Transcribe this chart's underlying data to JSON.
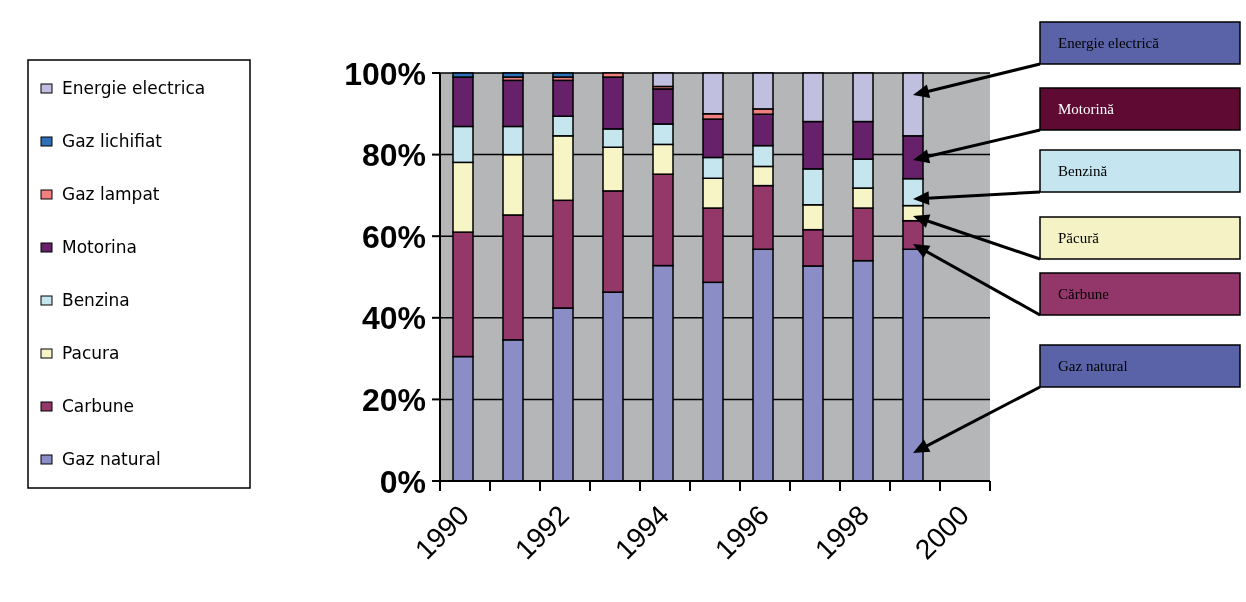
{
  "chart_data": {
    "type": "bar",
    "stacked": true,
    "categories": [
      "1990",
      null,
      "1992",
      null,
      "1994",
      null,
      "1996",
      null,
      "1998",
      null,
      "2000"
    ],
    "series": [
      {
        "name": "Gaz natural",
        "color": "#8b8dc7",
        "values": [
          30.5,
          34.6,
          42.4,
          46.3,
          52.8,
          48.7,
          56.8,
          52.7,
          54.0,
          56.8,
          null
        ]
      },
      {
        "name": "Carbune",
        "color": "#943769",
        "values": [
          30.5,
          30.6,
          26.4,
          24.8,
          22.4,
          18.2,
          15.6,
          8.9,
          12.9,
          7.0,
          null
        ]
      },
      {
        "name": "Pacura",
        "color": "#f7f5c6",
        "values": [
          17.1,
          14.8,
          15.8,
          10.7,
          7.3,
          7.3,
          4.7,
          6.1,
          4.9,
          3.7,
          null
        ]
      },
      {
        "name": "Benzina",
        "color": "#c5e6ef",
        "values": [
          8.8,
          6.9,
          4.8,
          4.5,
          5.0,
          5.1,
          5.1,
          8.8,
          7.1,
          6.6,
          null
        ]
      },
      {
        "name": "Motorina",
        "color": "#66216a",
        "values": [
          12.1,
          11.3,
          8.8,
          12.7,
          8.6,
          9.4,
          7.7,
          11.6,
          9.2,
          10.5,
          null
        ]
      },
      {
        "name": "Gaz lampat",
        "color": "#f08080",
        "values": [
          0,
          0.8,
          0.8,
          1.0,
          0.6,
          1.3,
          1.3,
          0,
          0,
          0,
          null
        ]
      },
      {
        "name": "Gaz lichifiat",
        "color": "#2f6fb8",
        "values": [
          1.0,
          1.0,
          1.0,
          0,
          0,
          0,
          0,
          0,
          0,
          0,
          null
        ]
      },
      {
        "name": "Energie electrica",
        "color": "#c0bfe0",
        "values": [
          0,
          0,
          0,
          0,
          3.3,
          10.0,
          8.8,
          11.9,
          11.9,
          15.4,
          null
        ]
      }
    ],
    "ylim": [
      0,
      100
    ],
    "yticks": [
      {
        "value": 0,
        "label": "0%"
      },
      {
        "value": 20,
        "label": "20%"
      },
      {
        "value": 40,
        "label": "40%"
      },
      {
        "value": 60,
        "label": "60%"
      },
      {
        "value": 80,
        "label": "80%"
      },
      {
        "value": 100,
        "label": "100%"
      }
    ],
    "grid": "y",
    "legend": "left",
    "annotations": [
      "Energie electrică",
      "Motorină",
      "Benzină",
      "Păcură",
      "Cărbune",
      "Gaz natural"
    ]
  }
}
